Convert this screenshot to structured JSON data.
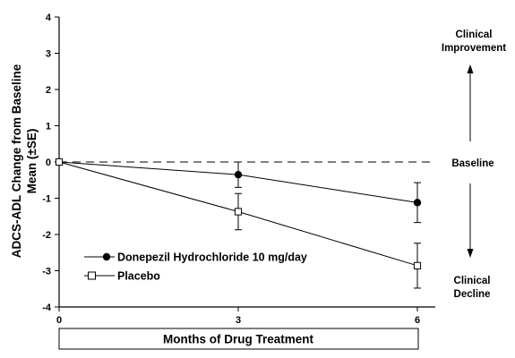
{
  "chart_data": {
    "type": "line",
    "title": "",
    "xlabel": "Months of Drug Treatment",
    "ylabel_line1": "ADCS-ADL Change from Baseline",
    "ylabel_line2": "Mean (±SE)",
    "x": [
      0,
      3,
      6
    ],
    "x_ticks": [
      "0",
      "3",
      "6"
    ],
    "ylim": [
      -4,
      4
    ],
    "y_ticks": [
      "4",
      "3",
      "2",
      "1",
      "0",
      "-1",
      "-2",
      "-3",
      "-4"
    ],
    "grid": false,
    "legend_position": "bottom-left",
    "series": [
      {
        "name": "Donepezil Hydrochloride 10 mg/day",
        "marker": "filled-circle",
        "values": [
          0,
          -0.35,
          -1.12
        ],
        "se": [
          0,
          0.35,
          0.55
        ]
      },
      {
        "name": "Placebo",
        "marker": "open-square",
        "values": [
          0,
          -1.37,
          -2.86
        ],
        "se": [
          0,
          0.5,
          0.62
        ]
      }
    ],
    "reference_line": {
      "y": 0,
      "label": "Baseline",
      "style": "dashed"
    },
    "annotations": {
      "improvement_line1": "Clinical",
      "improvement_line2": "Improvement",
      "decline_line1": "Clinical",
      "decline_line2": "Decline"
    }
  }
}
